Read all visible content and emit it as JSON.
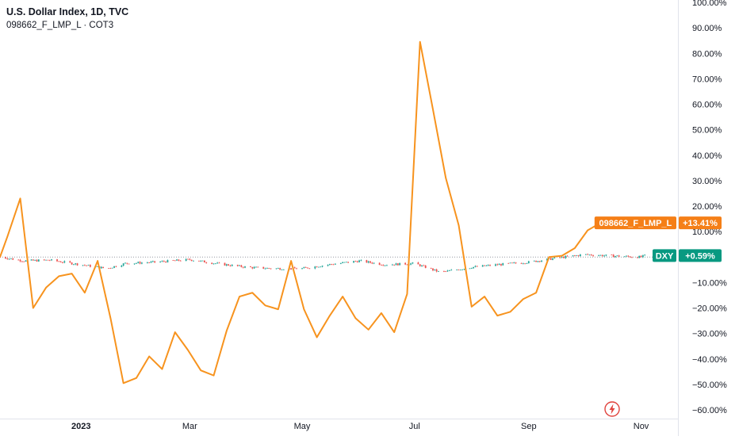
{
  "legend": {
    "title": "U.S. Dollar Index, 1D, TVC",
    "subtitle": "098662_F_LMP_L · COT3"
  },
  "icons": {
    "events": "lightning-icon"
  },
  "colors": {
    "orange": "#F57F17",
    "cot_line": "#F7931E",
    "up": "#26A69A",
    "down": "#EF5350",
    "dxy_tag": "#089981",
    "grid": "#F0F3FA",
    "baseline": "#9598A1"
  },
  "chart_data": {
    "type": "line",
    "y_axis": {
      "unit": "%",
      "min": -60,
      "max": 100,
      "ticks": [
        "100.00%",
        "90.00%",
        "80.00%",
        "70.00%",
        "60.00%",
        "50.00%",
        "40.00%",
        "30.00%",
        "20.00%",
        "10.00%",
        "−10.00%",
        "−20.00%",
        "−30.00%",
        "−40.00%",
        "−50.00%",
        "−60.00%"
      ],
      "tick_values": [
        100,
        90,
        80,
        70,
        60,
        50,
        40,
        30,
        20,
        10,
        -10,
        -20,
        -30,
        -40,
        -50,
        -60
      ]
    },
    "x_axis": {
      "start": "2022-11-18",
      "end": "2023-11-21",
      "labels": [
        {
          "label": "2023",
          "date": "2023-01-01"
        },
        {
          "label": "Mar",
          "date": "2023-03-01"
        },
        {
          "label": "May",
          "date": "2023-05-01"
        },
        {
          "label": "Jul",
          "date": "2023-07-01"
        },
        {
          "label": "Sep",
          "date": "2023-09-01"
        },
        {
          "label": "Nov",
          "date": "2023-11-01"
        }
      ]
    },
    "series": [
      {
        "name": "098662_F_LMP_L",
        "last_label": "+13.41%",
        "last_value": 13.41,
        "points": [
          [
            "2022-11-18",
            0
          ],
          [
            "2022-11-22",
            8
          ],
          [
            "2022-11-29",
            23
          ],
          [
            "2022-12-06",
            -20
          ],
          [
            "2022-12-13",
            -12
          ],
          [
            "2022-12-20",
            -7.5
          ],
          [
            "2022-12-27",
            -6.5
          ],
          [
            "2023-01-03",
            -14
          ],
          [
            "2023-01-10",
            -1.5
          ],
          [
            "2023-01-17",
            -24
          ],
          [
            "2023-01-24",
            -49.5
          ],
          [
            "2023-01-31",
            -47.5
          ],
          [
            "2023-02-07",
            -39
          ],
          [
            "2023-02-14",
            -44
          ],
          [
            "2023-02-21",
            -29.5
          ],
          [
            "2023-02-28",
            -36.5
          ],
          [
            "2023-03-07",
            -44.5
          ],
          [
            "2023-03-14",
            -46.5
          ],
          [
            "2023-03-21",
            -29
          ],
          [
            "2023-03-28",
            -15.5
          ],
          [
            "2023-04-04",
            -14
          ],
          [
            "2023-04-11",
            -19
          ],
          [
            "2023-04-18",
            -20.5
          ],
          [
            "2023-04-25",
            -1.5
          ],
          [
            "2023-05-02",
            -20.5
          ],
          [
            "2023-05-09",
            -31.5
          ],
          [
            "2023-05-16",
            -23
          ],
          [
            "2023-05-23",
            -15.5
          ],
          [
            "2023-05-30",
            -24
          ],
          [
            "2023-06-06",
            -28.5
          ],
          [
            "2023-06-13",
            -22
          ],
          [
            "2023-06-20",
            -29.5
          ],
          [
            "2023-06-27",
            -14.5
          ],
          [
            "2023-07-04",
            84.5
          ],
          [
            "2023-07-11",
            58
          ],
          [
            "2023-07-18",
            31
          ],
          [
            "2023-07-25",
            12.5
          ],
          [
            "2023-08-01",
            -19.5
          ],
          [
            "2023-08-08",
            -15.5
          ],
          [
            "2023-08-15",
            -23
          ],
          [
            "2023-08-22",
            -21.5
          ],
          [
            "2023-08-29",
            -16.5
          ],
          [
            "2023-09-05",
            -14
          ],
          [
            "2023-09-12",
            0
          ],
          [
            "2023-09-19",
            0.5
          ],
          [
            "2023-09-26",
            3.5
          ],
          [
            "2023-10-03",
            10.5
          ],
          [
            "2023-10-10",
            13.41
          ]
        ]
      },
      {
        "name": "DXY",
        "last_label": "+0.59%",
        "last_value": 0.59,
        "style": "candles",
        "points": [
          [
            "2022-11-18",
            0
          ],
          [
            "2022-12-01",
            -1.5
          ],
          [
            "2022-12-15",
            -1.2
          ],
          [
            "2023-01-01",
            -3
          ],
          [
            "2023-01-15",
            -4.5
          ],
          [
            "2023-01-25",
            -2.5
          ],
          [
            "2023-02-10",
            -2
          ],
          [
            "2023-03-01",
            -1
          ],
          [
            "2023-03-15",
            -2.5
          ],
          [
            "2023-04-01",
            -4
          ],
          [
            "2023-04-15",
            -4.5
          ],
          [
            "2023-05-01",
            -4.5
          ],
          [
            "2023-05-15",
            -3
          ],
          [
            "2023-06-01",
            -1.5
          ],
          [
            "2023-06-15",
            -3
          ],
          [
            "2023-07-01",
            -2.5
          ],
          [
            "2023-07-15",
            -6
          ],
          [
            "2023-08-01",
            -4
          ],
          [
            "2023-08-15",
            -3
          ],
          [
            "2023-09-01",
            -2
          ],
          [
            "2023-09-15",
            -0.5
          ],
          [
            "2023-10-01",
            1
          ],
          [
            "2023-10-15",
            0.5
          ],
          [
            "2023-11-01",
            0
          ],
          [
            "2023-11-03",
            0.59
          ]
        ]
      }
    ],
    "baseline": 0,
    "grid": false
  }
}
